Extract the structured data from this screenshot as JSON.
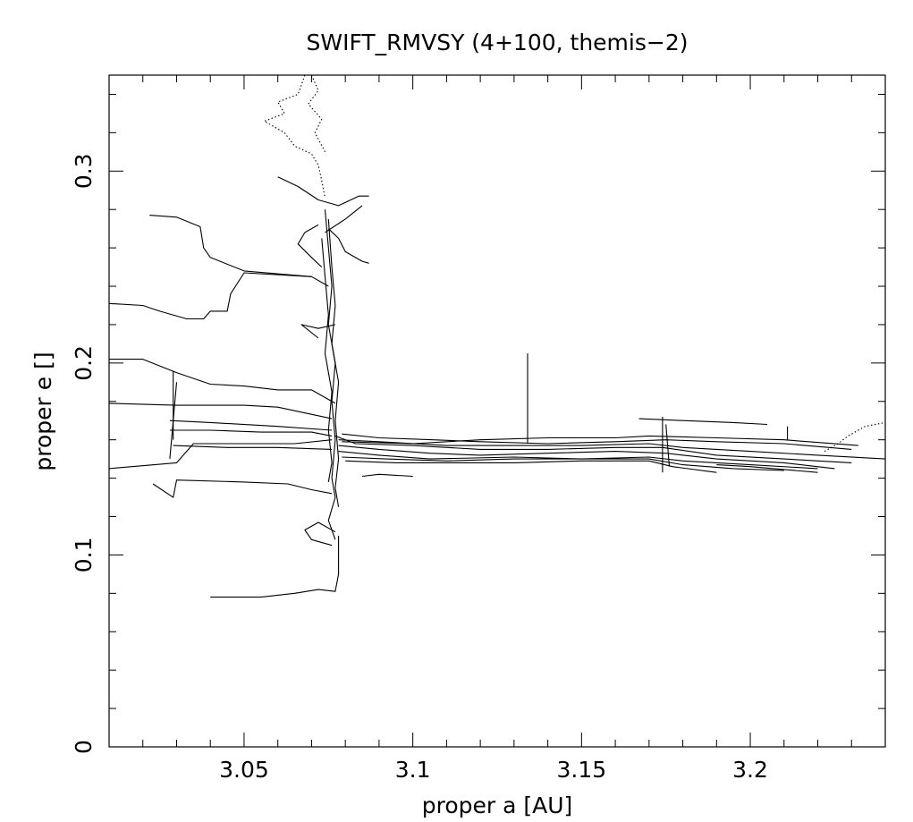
{
  "chart_data": {
    "type": "line",
    "title": "SWIFT_RMVSY (4+100, themis−2)",
    "xlabel": "proper a [AU]",
    "ylabel": "proper e []",
    "xlim": [
      3.01,
      3.24
    ],
    "ylim": [
      0,
      0.35
    ],
    "x_ticks": [
      3.05,
      3.1,
      3.15,
      3.2
    ],
    "x_tick_labels": [
      "3.05",
      "3.1",
      "3.15",
      "3.2"
    ],
    "y_ticks": [
      0,
      0.1,
      0.2,
      0.3
    ],
    "y_tick_labels": [
      "0",
      "0.1",
      "0.2",
      "0.3"
    ],
    "x_minor_step": 0.01,
    "y_minor_step": 0.02,
    "grid": false,
    "legend": "none",
    "colors": {
      "line": "#000000",
      "background": "#ffffff"
    },
    "series": [
      {
        "points": [
          [
            3.077,
            0.162
          ],
          [
            3.083,
            0.158
          ],
          [
            3.1,
            0.157
          ],
          [
            3.12,
            0.155
          ],
          [
            3.14,
            0.155
          ],
          [
            3.16,
            0.156
          ],
          [
            3.174,
            0.156
          ],
          [
            3.19,
            0.152
          ],
          [
            3.21,
            0.15
          ],
          [
            3.23,
            0.148
          ]
        ]
      },
      {
        "points": [
          [
            3.078,
            0.16
          ],
          [
            3.09,
            0.159
          ],
          [
            3.11,
            0.157
          ],
          [
            3.13,
            0.157
          ],
          [
            3.15,
            0.157
          ],
          [
            3.17,
            0.158
          ],
          [
            3.18,
            0.156
          ],
          [
            3.2,
            0.154
          ],
          [
            3.22,
            0.152
          ],
          [
            3.24,
            0.15
          ]
        ]
      },
      {
        "points": [
          [
            3.078,
            0.157
          ],
          [
            3.09,
            0.155
          ],
          [
            3.105,
            0.153
          ],
          [
            3.12,
            0.152
          ],
          [
            3.14,
            0.153
          ],
          [
            3.16,
            0.154
          ],
          [
            3.175,
            0.153
          ],
          [
            3.19,
            0.15
          ],
          [
            3.21,
            0.148
          ],
          [
            3.225,
            0.145
          ]
        ]
      },
      {
        "points": [
          [
            3.079,
            0.163
          ],
          [
            3.09,
            0.161
          ],
          [
            3.106,
            0.16
          ],
          [
            3.12,
            0.159
          ],
          [
            3.14,
            0.158
          ],
          [
            3.16,
            0.159
          ],
          [
            3.175,
            0.16
          ],
          [
            3.19,
            0.159
          ],
          [
            3.21,
            0.158
          ],
          [
            3.23,
            0.155
          ]
        ]
      },
      {
        "points": [
          [
            3.078,
            0.154
          ],
          [
            3.09,
            0.152
          ],
          [
            3.105,
            0.15
          ],
          [
            3.13,
            0.151
          ],
          [
            3.15,
            0.15
          ],
          [
            3.17,
            0.151
          ],
          [
            3.18,
            0.149
          ],
          [
            3.2,
            0.147
          ],
          [
            3.22,
            0.145
          ]
        ]
      },
      {
        "points": [
          [
            3.079,
            0.151
          ],
          [
            3.092,
            0.15
          ],
          [
            3.11,
            0.149
          ],
          [
            3.13,
            0.15
          ],
          [
            3.15,
            0.15
          ],
          [
            3.17,
            0.15
          ],
          [
            3.18,
            0.147
          ],
          [
            3.195,
            0.145
          ],
          [
            3.21,
            0.144
          ]
        ]
      },
      {
        "points": [
          [
            3.08,
            0.149
          ],
          [
            3.095,
            0.148
          ],
          [
            3.11,
            0.148
          ],
          [
            3.13,
            0.148
          ],
          [
            3.15,
            0.149
          ],
          [
            3.17,
            0.149
          ],
          [
            3.177,
            0.146
          ],
          [
            3.19,
            0.143
          ]
        ]
      },
      {
        "points": [
          [
            3.079,
            0.159
          ],
          [
            3.1,
            0.158
          ],
          [
            3.12,
            0.16
          ],
          [
            3.14,
            0.161
          ],
          [
            3.16,
            0.161
          ],
          [
            3.17,
            0.162
          ],
          [
            3.19,
            0.161
          ],
          [
            3.21,
            0.16
          ],
          [
            3.232,
            0.157
          ]
        ]
      },
      {
        "points": [
          [
            3.01,
            0.202
          ],
          [
            3.02,
            0.202
          ],
          [
            3.03,
            0.195
          ],
          [
            3.04,
            0.189
          ],
          [
            3.05,
            0.188
          ],
          [
            3.06,
            0.186
          ],
          [
            3.07,
            0.186
          ],
          [
            3.077,
            0.179
          ]
        ]
      },
      {
        "points": [
          [
            3.01,
            0.179
          ],
          [
            3.03,
            0.178
          ],
          [
            3.05,
            0.178
          ],
          [
            3.06,
            0.177
          ],
          [
            3.076,
            0.171
          ]
        ]
      },
      {
        "points": [
          [
            3.01,
            0.145
          ],
          [
            3.03,
            0.148
          ],
          [
            3.035,
            0.158
          ],
          [
            3.05,
            0.158
          ],
          [
            3.065,
            0.158
          ],
          [
            3.076,
            0.16
          ]
        ]
      },
      {
        "points": [
          [
            3.028,
            0.165
          ],
          [
            3.04,
            0.165
          ],
          [
            3.055,
            0.164
          ],
          [
            3.07,
            0.164
          ],
          [
            3.076,
            0.162
          ]
        ]
      },
      {
        "points": [
          [
            3.028,
            0.17
          ],
          [
            3.04,
            0.169
          ],
          [
            3.06,
            0.167
          ],
          [
            3.076,
            0.165
          ]
        ]
      },
      {
        "points": [
          [
            3.029,
            0.157
          ],
          [
            3.045,
            0.156
          ],
          [
            3.06,
            0.156
          ],
          [
            3.076,
            0.155
          ]
        ]
      },
      {
        "points": [
          [
            3.023,
            0.137
          ],
          [
            3.029,
            0.13
          ],
          [
            3.03,
            0.139
          ],
          [
            3.05,
            0.138
          ],
          [
            3.063,
            0.137
          ],
          [
            3.07,
            0.134
          ],
          [
            3.076,
            0.132
          ]
        ]
      },
      {
        "points": [
          [
            3.01,
            0.231
          ],
          [
            3.02,
            0.23
          ],
          [
            3.025,
            0.227
          ],
          [
            3.033,
            0.223
          ],
          [
            3.038,
            0.223
          ],
          [
            3.04,
            0.227
          ],
          [
            3.045,
            0.227
          ],
          [
            3.046,
            0.236
          ],
          [
            3.05,
            0.247
          ],
          [
            3.07,
            0.245
          ],
          [
            3.075,
            0.24
          ]
        ]
      },
      {
        "points": [
          [
            3.022,
            0.277
          ],
          [
            3.03,
            0.276
          ],
          [
            3.037,
            0.271
          ],
          [
            3.038,
            0.26
          ],
          [
            3.04,
            0.255
          ],
          [
            3.05,
            0.248
          ],
          [
            3.07,
            0.245
          ]
        ]
      },
      {
        "points": [
          [
            3.04,
            0.078
          ],
          [
            3.055,
            0.078
          ],
          [
            3.065,
            0.08
          ],
          [
            3.072,
            0.082
          ],
          [
            3.077,
            0.081
          ],
          [
            3.078,
            0.09
          ],
          [
            3.078,
            0.11
          ]
        ]
      },
      {
        "points": [
          [
            3.074,
            0.28
          ],
          [
            3.075,
            0.26
          ],
          [
            3.076,
            0.24
          ],
          [
            3.075,
            0.22
          ],
          [
            3.077,
            0.2
          ],
          [
            3.076,
            0.18
          ],
          [
            3.077,
            0.16
          ],
          [
            3.076,
            0.14
          ],
          [
            3.077,
            0.13
          ],
          [
            3.075,
            0.118
          ],
          [
            3.077,
            0.108
          ]
        ]
      },
      {
        "points": [
          [
            3.075,
            0.275
          ],
          [
            3.076,
            0.25
          ],
          [
            3.077,
            0.23
          ],
          [
            3.076,
            0.21
          ],
          [
            3.078,
            0.19
          ],
          [
            3.077,
            0.17
          ],
          [
            3.078,
            0.15
          ],
          [
            3.077,
            0.135
          ],
          [
            3.078,
            0.125
          ]
        ]
      },
      {
        "points": [
          [
            3.073,
            0.265
          ],
          [
            3.074,
            0.245
          ],
          [
            3.075,
            0.225
          ],
          [
            3.074,
            0.205
          ],
          [
            3.076,
            0.185
          ],
          [
            3.075,
            0.165
          ],
          [
            3.076,
            0.148
          ],
          [
            3.075,
            0.138
          ]
        ]
      },
      {
        "points": [
          [
            3.075,
            0.27
          ],
          [
            3.078,
            0.265
          ],
          [
            3.08,
            0.258
          ],
          [
            3.085,
            0.253
          ],
          [
            3.087,
            0.252
          ]
        ]
      },
      {
        "points": [
          [
            3.072,
            0.272
          ],
          [
            3.068,
            0.268
          ],
          [
            3.066,
            0.262
          ],
          [
            3.07,
            0.255
          ],
          [
            3.073,
            0.25
          ]
        ]
      },
      {
        "points": [
          [
            3.074,
            0.268
          ],
          [
            3.08,
            0.275
          ],
          [
            3.085,
            0.282
          ]
        ]
      },
      {
        "points": [
          [
            3.06,
            0.297
          ],
          [
            3.066,
            0.292
          ],
          [
            3.072,
            0.285
          ],
          [
            3.078,
            0.282
          ],
          [
            3.084,
            0.287
          ],
          [
            3.087,
            0.287
          ]
        ]
      },
      {
        "points": [
          [
            3.077,
            0.22
          ],
          [
            3.072,
            0.218
          ],
          [
            3.067,
            0.22
          ],
          [
            3.072,
            0.213
          ]
        ]
      },
      {
        "points": [
          [
            3.076,
            0.105
          ],
          [
            3.07,
            0.108
          ],
          [
            3.068,
            0.113
          ],
          [
            3.072,
            0.117
          ],
          [
            3.077,
            0.112
          ]
        ]
      },
      {
        "points": [
          [
            3.029,
            0.196
          ],
          [
            3.029,
            0.16
          ]
        ]
      },
      {
        "points": [
          [
            3.03,
            0.19
          ],
          [
            3.028,
            0.15
          ]
        ]
      },
      {
        "points": [
          [
            3.134,
            0.205
          ],
          [
            3.134,
            0.158
          ]
        ]
      },
      {
        "points": [
          [
            3.211,
            0.167
          ],
          [
            3.211,
            0.16
          ]
        ]
      },
      {
        "points": [
          [
            3.174,
            0.172
          ],
          [
            3.174,
            0.143
          ]
        ]
      },
      {
        "points": [
          [
            3.175,
            0.168
          ],
          [
            3.176,
            0.146
          ]
        ]
      },
      {
        "points": [
          [
            3.167,
            0.171
          ],
          [
            3.18,
            0.17
          ],
          [
            3.195,
            0.169
          ],
          [
            3.205,
            0.168
          ]
        ]
      },
      {
        "points": [
          [
            3.1,
            0.141
          ],
          [
            3.09,
            0.142
          ],
          [
            3.085,
            0.141
          ]
        ]
      },
      {
        "points": [
          [
            3.19,
            0.147
          ],
          [
            3.2,
            0.146
          ],
          [
            3.22,
            0.143
          ]
        ]
      },
      {
        "style": "dotted",
        "points": [
          [
            3.068,
            0.35
          ],
          [
            3.066,
            0.34
          ],
          [
            3.06,
            0.336
          ],
          [
            3.062,
            0.33
          ],
          [
            3.056,
            0.326
          ],
          [
            3.062,
            0.32
          ],
          [
            3.065,
            0.313
          ],
          [
            3.07,
            0.309
          ],
          [
            3.072,
            0.303
          ],
          [
            3.073,
            0.295
          ],
          [
            3.074,
            0.286
          ]
        ]
      },
      {
        "style": "dotted",
        "points": [
          [
            3.07,
            0.35
          ],
          [
            3.072,
            0.342
          ],
          [
            3.069,
            0.335
          ],
          [
            3.073,
            0.327
          ],
          [
            3.071,
            0.32
          ],
          [
            3.074,
            0.31
          ]
        ]
      },
      {
        "style": "dotted",
        "points": [
          [
            3.222,
            0.154
          ],
          [
            3.226,
            0.158
          ],
          [
            3.229,
            0.162
          ],
          [
            3.234,
            0.167
          ],
          [
            3.24,
            0.169
          ]
        ]
      }
    ]
  }
}
